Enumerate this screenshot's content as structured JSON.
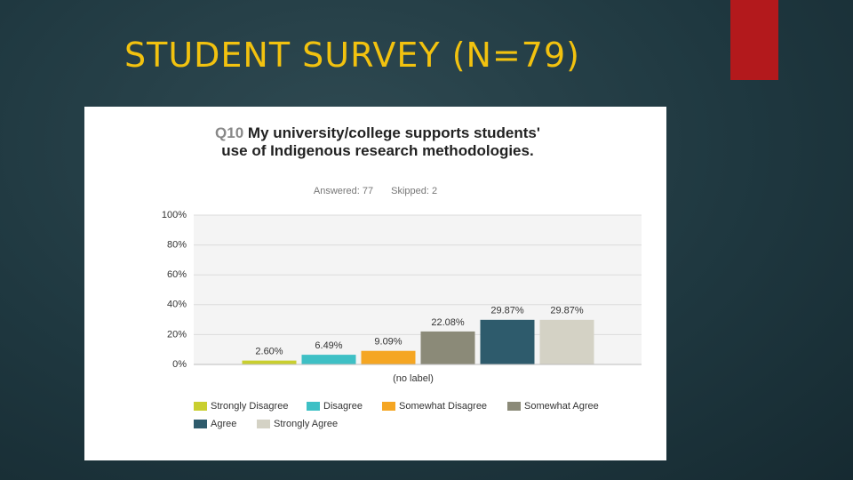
{
  "slide_title": "STUDENT SURVEY (N=79)",
  "chart_data": {
    "type": "bar",
    "question": "Q10",
    "title": "My university/college supports students' use of Indigenous research methodologies.",
    "answered": "Answered: 77",
    "skipped": "Skipped: 2",
    "xlabel": "(no label)",
    "categories": [
      "Strongly Disagree",
      "Disagree",
      "Somewhat Disagree",
      "Somewhat Agree",
      "Agree",
      "Strongly Agree"
    ],
    "values": [
      2.6,
      6.49,
      9.09,
      22.08,
      29.87,
      29.87
    ],
    "value_labels": [
      "2.60%",
      "6.49%",
      "9.09%",
      "22.08%",
      "29.87%",
      "29.87%"
    ],
    "colors": [
      "#c9cf2f",
      "#3ec0c5",
      "#f5a623",
      "#8b8a78",
      "#2e5b6c",
      "#d4d2c5"
    ],
    "ylim": [
      0,
      100
    ],
    "yticks": [
      {
        "value": 0,
        "label": "0%"
      },
      {
        "value": 20,
        "label": "20%"
      },
      {
        "value": 40,
        "label": "40%"
      },
      {
        "value": 60,
        "label": "60%"
      },
      {
        "value": 80,
        "label": "80%"
      },
      {
        "value": 100,
        "label": "100%"
      }
    ],
    "grid": true
  }
}
